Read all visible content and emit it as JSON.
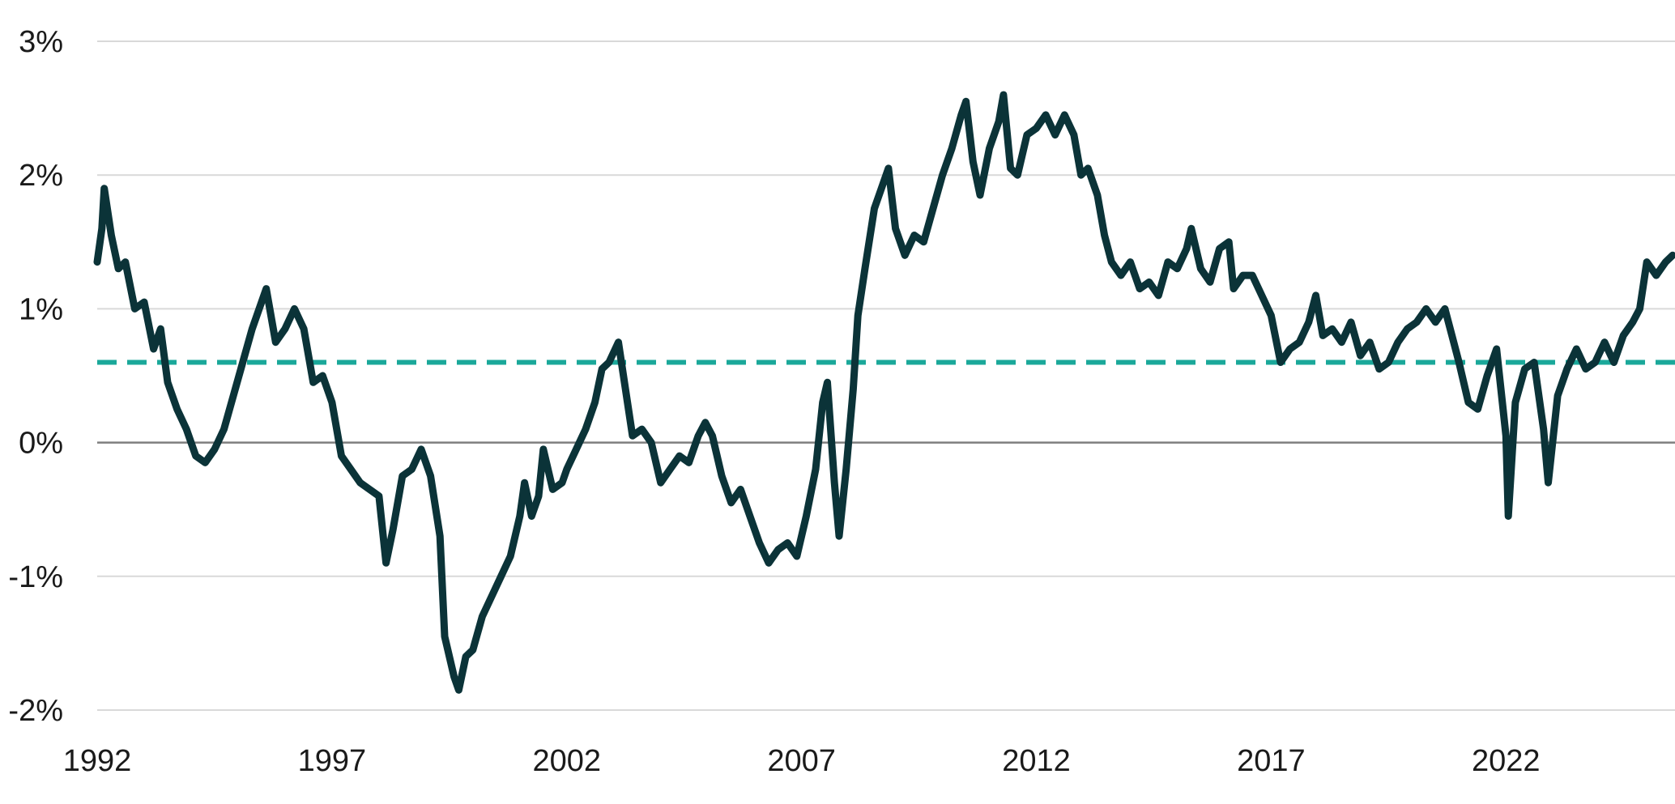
{
  "chart_data": {
    "type": "line",
    "title": "",
    "xlabel": "",
    "ylabel": "",
    "xlim": [
      1992,
      2025.6
    ],
    "ylim": [
      -2,
      3
    ],
    "x_ticks": [
      1992,
      1997,
      2002,
      2007,
      2012,
      2017,
      2022
    ],
    "x_tick_labels": [
      "1992",
      "1997",
      "2002",
      "2007",
      "2012",
      "2017",
      "2022"
    ],
    "y_ticks": [
      -2,
      -1,
      0,
      1,
      2,
      3
    ],
    "y_tick_labels": [
      "-2%",
      "-1%",
      "0%",
      "1%",
      "2%",
      "3%"
    ],
    "grid": true,
    "legend": "none",
    "colors": {
      "series": "#0b3338",
      "reference": "#1aa89a",
      "grid": "#d9d9d9",
      "zero": "#7f7f7f"
    },
    "reference_lines": [
      {
        "y": 0.6,
        "style": "dashed"
      }
    ],
    "series": [
      {
        "points": [
          [
            1992.0,
            1.35
          ],
          [
            1992.1,
            1.6
          ],
          [
            1992.15,
            1.9
          ],
          [
            1992.3,
            1.55
          ],
          [
            1992.45,
            1.3
          ],
          [
            1992.6,
            1.35
          ],
          [
            1992.8,
            1.0
          ],
          [
            1993.0,
            1.05
          ],
          [
            1993.2,
            0.7
          ],
          [
            1993.35,
            0.85
          ],
          [
            1993.5,
            0.45
          ],
          [
            1993.7,
            0.25
          ],
          [
            1993.9,
            0.1
          ],
          [
            1994.1,
            -0.1
          ],
          [
            1994.3,
            -0.15
          ],
          [
            1994.5,
            -0.05
          ],
          [
            1994.7,
            0.1
          ],
          [
            1994.9,
            0.35
          ],
          [
            1995.1,
            0.6
          ],
          [
            1995.3,
            0.85
          ],
          [
            1995.5,
            1.05
          ],
          [
            1995.6,
            1.15
          ],
          [
            1995.8,
            0.75
          ],
          [
            1996.0,
            0.85
          ],
          [
            1996.2,
            1.0
          ],
          [
            1996.4,
            0.85
          ],
          [
            1996.6,
            0.45
          ],
          [
            1996.8,
            0.5
          ],
          [
            1997.0,
            0.3
          ],
          [
            1997.2,
            -0.1
          ],
          [
            1997.4,
            -0.2
          ],
          [
            1997.6,
            -0.3
          ],
          [
            1997.8,
            -0.35
          ],
          [
            1998.0,
            -0.4
          ],
          [
            1998.15,
            -0.9
          ],
          [
            1998.3,
            -0.65
          ],
          [
            1998.5,
            -0.25
          ],
          [
            1998.7,
            -0.2
          ],
          [
            1998.9,
            -0.05
          ],
          [
            1999.1,
            -0.25
          ],
          [
            1999.3,
            -0.7
          ],
          [
            1999.4,
            -1.45
          ],
          [
            1999.6,
            -1.75
          ],
          [
            1999.7,
            -1.85
          ],
          [
            1999.85,
            -1.6
          ],
          [
            2000.0,
            -1.55
          ],
          [
            2000.2,
            -1.3
          ],
          [
            2000.4,
            -1.15
          ],
          [
            2000.6,
            -1.0
          ],
          [
            2000.8,
            -0.85
          ],
          [
            2001.0,
            -0.55
          ],
          [
            2001.1,
            -0.3
          ],
          [
            2001.25,
            -0.55
          ],
          [
            2001.4,
            -0.4
          ],
          [
            2001.5,
            -0.05
          ],
          [
            2001.7,
            -0.35
          ],
          [
            2001.9,
            -0.3
          ],
          [
            2002.0,
            -0.2
          ],
          [
            2002.2,
            -0.05
          ],
          [
            2002.4,
            0.1
          ],
          [
            2002.6,
            0.3
          ],
          [
            2002.75,
            0.55
          ],
          [
            2002.9,
            0.6
          ],
          [
            2003.1,
            0.75
          ],
          [
            2003.25,
            0.4
          ],
          [
            2003.4,
            0.05
          ],
          [
            2003.6,
            0.1
          ],
          [
            2003.8,
            0.0
          ],
          [
            2004.0,
            -0.3
          ],
          [
            2004.2,
            -0.2
          ],
          [
            2004.4,
            -0.1
          ],
          [
            2004.6,
            -0.15
          ],
          [
            2004.8,
            0.05
          ],
          [
            2004.95,
            0.15
          ],
          [
            2005.1,
            0.05
          ],
          [
            2005.3,
            -0.25
          ],
          [
            2005.5,
            -0.45
          ],
          [
            2005.7,
            -0.35
          ],
          [
            2005.9,
            -0.55
          ],
          [
            2006.1,
            -0.75
          ],
          [
            2006.3,
            -0.9
          ],
          [
            2006.5,
            -0.8
          ],
          [
            2006.7,
            -0.75
          ],
          [
            2006.9,
            -0.85
          ],
          [
            2007.1,
            -0.55
          ],
          [
            2007.3,
            -0.2
          ],
          [
            2007.45,
            0.3
          ],
          [
            2007.55,
            0.45
          ],
          [
            2007.7,
            -0.3
          ],
          [
            2007.8,
            -0.7
          ],
          [
            2007.95,
            -0.2
          ],
          [
            2008.1,
            0.4
          ],
          [
            2008.2,
            0.95
          ],
          [
            2008.35,
            1.3
          ],
          [
            2008.55,
            1.75
          ],
          [
            2008.7,
            1.9
          ],
          [
            2008.85,
            2.05
          ],
          [
            2009.0,
            1.6
          ],
          [
            2009.2,
            1.4
          ],
          [
            2009.4,
            1.55
          ],
          [
            2009.6,
            1.5
          ],
          [
            2009.8,
            1.75
          ],
          [
            2010.0,
            2.0
          ],
          [
            2010.2,
            2.2
          ],
          [
            2010.4,
            2.45
          ],
          [
            2010.5,
            2.55
          ],
          [
            2010.65,
            2.1
          ],
          [
            2010.8,
            1.85
          ],
          [
            2011.0,
            2.2
          ],
          [
            2011.2,
            2.4
          ],
          [
            2011.3,
            2.6
          ],
          [
            2011.45,
            2.05
          ],
          [
            2011.6,
            2.0
          ],
          [
            2011.8,
            2.3
          ],
          [
            2012.0,
            2.35
          ],
          [
            2012.2,
            2.45
          ],
          [
            2012.4,
            2.3
          ],
          [
            2012.6,
            2.45
          ],
          [
            2012.8,
            2.3
          ],
          [
            2012.95,
            2.0
          ],
          [
            2013.1,
            2.05
          ],
          [
            2013.3,
            1.85
          ],
          [
            2013.45,
            1.55
          ],
          [
            2013.6,
            1.35
          ],
          [
            2013.8,
            1.25
          ],
          [
            2014.0,
            1.35
          ],
          [
            2014.2,
            1.15
          ],
          [
            2014.4,
            1.2
          ],
          [
            2014.6,
            1.1
          ],
          [
            2014.8,
            1.35
          ],
          [
            2015.0,
            1.3
          ],
          [
            2015.2,
            1.45
          ],
          [
            2015.3,
            1.6
          ],
          [
            2015.5,
            1.3
          ],
          [
            2015.7,
            1.2
          ],
          [
            2015.9,
            1.45
          ],
          [
            2016.1,
            1.5
          ],
          [
            2016.2,
            1.15
          ],
          [
            2016.4,
            1.25
          ],
          [
            2016.6,
            1.25
          ],
          [
            2016.8,
            1.1
          ],
          [
            2017.0,
            0.95
          ],
          [
            2017.2,
            0.6
          ],
          [
            2017.4,
            0.7
          ],
          [
            2017.6,
            0.75
          ],
          [
            2017.8,
            0.9
          ],
          [
            2017.95,
            1.1
          ],
          [
            2018.1,
            0.8
          ],
          [
            2018.3,
            0.85
          ],
          [
            2018.5,
            0.75
          ],
          [
            2018.7,
            0.9
          ],
          [
            2018.9,
            0.65
          ],
          [
            2019.1,
            0.75
          ],
          [
            2019.3,
            0.55
          ],
          [
            2019.5,
            0.6
          ],
          [
            2019.7,
            0.75
          ],
          [
            2019.9,
            0.85
          ],
          [
            2020.1,
            0.9
          ],
          [
            2020.3,
            1.0
          ],
          [
            2020.5,
            0.9
          ],
          [
            2020.7,
            1.0
          ],
          [
            2020.85,
            0.8
          ],
          [
            2021.0,
            0.6
          ],
          [
            2021.2,
            0.3
          ],
          [
            2021.4,
            0.25
          ],
          [
            2021.6,
            0.5
          ],
          [
            2021.8,
            0.7
          ],
          [
            2022.0,
            0.05
          ],
          [
            2022.05,
            -0.55
          ],
          [
            2022.2,
            0.3
          ],
          [
            2022.4,
            0.55
          ],
          [
            2022.6,
            0.6
          ],
          [
            2022.8,
            0.1
          ],
          [
            2022.9,
            -0.3
          ],
          [
            2023.1,
            0.35
          ],
          [
            2023.3,
            0.55
          ],
          [
            2023.5,
            0.7
          ],
          [
            2023.7,
            0.55
          ],
          [
            2023.9,
            0.6
          ],
          [
            2024.1,
            0.75
          ],
          [
            2024.3,
            0.6
          ],
          [
            2024.5,
            0.8
          ],
          [
            2024.7,
            0.9
          ],
          [
            2024.85,
            1.0
          ],
          [
            2025.0,
            1.35
          ],
          [
            2025.2,
            1.25
          ],
          [
            2025.4,
            1.35
          ],
          [
            2025.55,
            1.4
          ]
        ]
      }
    ]
  }
}
